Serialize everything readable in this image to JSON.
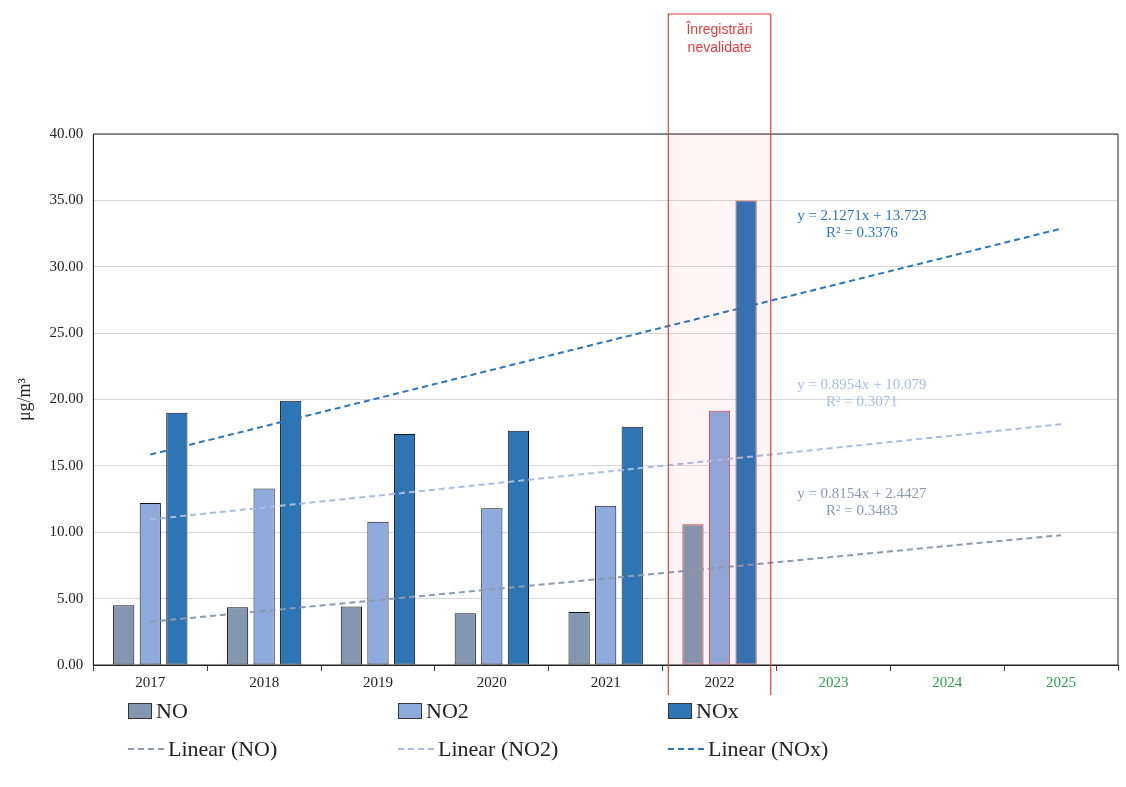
{
  "chart_data": {
    "type": "bar",
    "ylabel": "μg/m³",
    "categories": [
      "2017",
      "2018",
      "2019",
      "2020",
      "2021",
      "2022",
      "2023",
      "2024",
      "2025"
    ],
    "series": [
      {
        "name": "NO",
        "color": "#8497b0",
        "values": [
          4.5,
          4.35,
          4.4,
          3.9,
          4.0,
          10.6,
          null,
          null,
          null
        ]
      },
      {
        "name": "NO2",
        "color": "#8faadc",
        "values": [
          12.2,
          13.3,
          10.8,
          11.8,
          12.0,
          19.15,
          null,
          null,
          null
        ]
      },
      {
        "name": "NOx",
        "color": "#2e75b6",
        "values": [
          19.0,
          19.9,
          17.4,
          17.65,
          17.95,
          35.0,
          null,
          null,
          null
        ]
      },
      {
        "name": "Linear (NO)",
        "type": "line",
        "line_style": "dashed",
        "color": "#8c9ab0",
        "values": [
          3.26,
          4.07,
          4.89,
          5.7,
          6.52,
          7.33,
          8.15,
          8.97,
          9.78
        ]
      },
      {
        "name": "Linear (NO2)",
        "type": "line",
        "line_style": "dashed",
        "color": "#a9bde3",
        "values": [
          10.97,
          11.87,
          12.76,
          13.66,
          14.56,
          15.45,
          16.35,
          17.24,
          18.14
        ]
      },
      {
        "name": "Linear (NOx)",
        "type": "line",
        "line_style": "dashed",
        "color": "#2e75b6",
        "values": [
          15.85,
          17.98,
          20.1,
          22.23,
          24.36,
          26.49,
          28.61,
          30.74,
          32.87
        ]
      }
    ],
    "ylim": [
      0,
      40
    ],
    "yticks": [
      {
        "value": 0,
        "label": "0.00"
      },
      {
        "value": 5,
        "label": "5.00"
      },
      {
        "value": 10,
        "label": "10.00"
      },
      {
        "value": 15,
        "label": "15.00"
      },
      {
        "value": 20,
        "label": "20.00"
      },
      {
        "value": 25,
        "label": "25.00"
      },
      {
        "value": 30,
        "label": "30.00"
      },
      {
        "value": 35,
        "label": "35.00"
      },
      {
        "value": 40,
        "label": "40.00"
      }
    ],
    "bands": [
      {
        "axis": "x",
        "from": "2022",
        "to": "2022",
        "label": "Înregistrări nevalidate",
        "color": "#e03c3c"
      }
    ],
    "annotations": [
      "y = 0.8154x + 2.4427\nR² = 0.3483",
      "y = 0.8954x + 10.079\nR² = 0.3071",
      "y = 2.1271x + 13.723\nR² = 0.3376"
    ],
    "grid": "y",
    "legend": "bottom",
    "marker": "none"
  }
}
